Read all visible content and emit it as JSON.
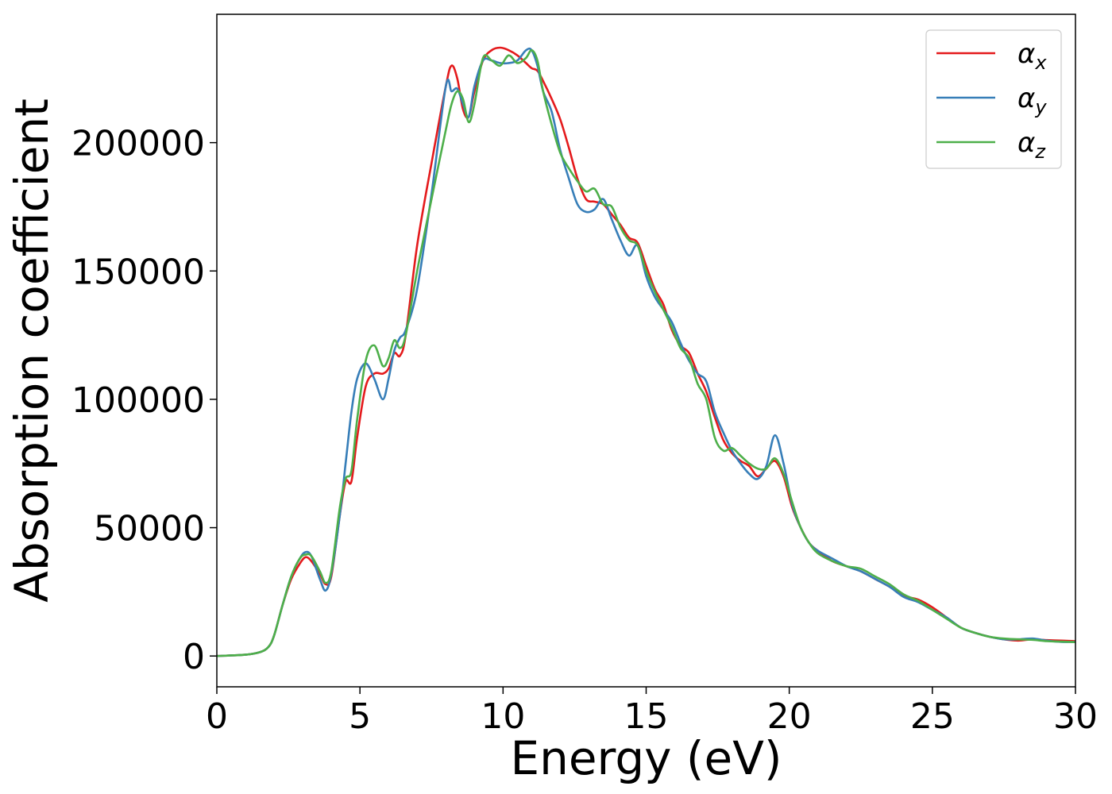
{
  "chart_data": {
    "type": "line",
    "title": "",
    "xlabel": "Energy (eV)",
    "ylabel": "Absorption coefficient",
    "xlim": [
      0,
      30
    ],
    "ylim": [
      -12000,
      250000
    ],
    "xticks": [
      0,
      5,
      10,
      15,
      20,
      25,
      30
    ],
    "yticks": [
      0,
      50000,
      100000,
      150000,
      200000
    ],
    "xtick_labels": [
      "0",
      "5",
      "10",
      "15",
      "20",
      "25",
      "30"
    ],
    "ytick_labels": [
      "0",
      "50000",
      "100000",
      "150000",
      "200000"
    ],
    "grid": false,
    "legend_position": "top-right",
    "series": [
      {
        "name": "α_x",
        "label_main": "α",
        "label_sub": "x",
        "color": "#e41a1c",
        "x": [
          0,
          1.0,
          1.5,
          1.8,
          2.0,
          2.3,
          2.6,
          2.9,
          3.1,
          3.3,
          3.6,
          3.8,
          4.0,
          4.3,
          4.5,
          4.7,
          4.9,
          5.2,
          5.5,
          5.8,
          6.0,
          6.2,
          6.4,
          6.6,
          7.0,
          7.5,
          8.0,
          8.2,
          8.4,
          8.6,
          8.8,
          9.0,
          9.3,
          9.6,
          9.9,
          10.2,
          10.5,
          10.8,
          11.0,
          11.2,
          11.4,
          11.7,
          12.0,
          12.3,
          12.6,
          12.9,
          13.2,
          13.5,
          13.8,
          14.1,
          14.4,
          14.7,
          15.0,
          15.3,
          15.6,
          15.9,
          16.2,
          16.5,
          16.8,
          17.1,
          17.4,
          17.7,
          18.0,
          18.3,
          18.6,
          18.9,
          19.2,
          19.5,
          19.8,
          20.1,
          20.4,
          20.7,
          21.0,
          21.5,
          22.0,
          22.5,
          23.0,
          23.5,
          24.0,
          24.5,
          25.0,
          25.5,
          26.0,
          26.5,
          27.0,
          27.5,
          28.0,
          28.5,
          29.0,
          29.5,
          30.0
        ],
        "y": [
          0,
          500,
          1500,
          3500,
          8000,
          20000,
          30000,
          36000,
          38500,
          37000,
          32000,
          28000,
          31000,
          55000,
          68000,
          68000,
          85000,
          105000,
          110000,
          110000,
          112000,
          118000,
          117000,
          125000,
          160000,
          192000,
          222000,
          230000,
          225000,
          213000,
          210000,
          220000,
          232000,
          236000,
          237000,
          236000,
          234000,
          231000,
          229000,
          228000,
          224000,
          217000,
          209000,
          198000,
          186000,
          178000,
          177000,
          176000,
          172000,
          168000,
          163000,
          161000,
          152000,
          143000,
          137000,
          127000,
          121000,
          118000,
          110000,
          103000,
          93000,
          84000,
          79000,
          76000,
          74000,
          70000,
          73000,
          76000,
          70000,
          58000,
          50000,
          44000,
          41000,
          37000,
          35000,
          33000,
          30000,
          27000,
          23500,
          22000,
          19000,
          15000,
          11000,
          9000,
          7500,
          6500,
          6000,
          6500,
          6200,
          6000,
          5800
        ]
      },
      {
        "name": "α_y",
        "label_main": "α",
        "label_sub": "y",
        "color": "#377eb8",
        "x": [
          0,
          1.0,
          1.5,
          1.8,
          2.0,
          2.3,
          2.6,
          2.9,
          3.1,
          3.3,
          3.6,
          3.8,
          4.0,
          4.3,
          4.5,
          4.7,
          4.9,
          5.2,
          5.5,
          5.8,
          6.0,
          6.2,
          6.4,
          6.6,
          7.0,
          7.5,
          8.0,
          8.2,
          8.4,
          8.6,
          8.8,
          9.0,
          9.3,
          9.6,
          9.9,
          10.2,
          10.5,
          10.8,
          11.0,
          11.2,
          11.4,
          11.7,
          12.0,
          12.3,
          12.6,
          12.9,
          13.2,
          13.5,
          13.8,
          14.1,
          14.4,
          14.7,
          15.0,
          15.3,
          15.6,
          15.9,
          16.2,
          16.5,
          16.8,
          17.1,
          17.4,
          17.7,
          18.0,
          18.3,
          18.6,
          18.9,
          19.2,
          19.5,
          19.8,
          20.1,
          20.4,
          20.7,
          21.0,
          21.5,
          22.0,
          22.5,
          23.0,
          23.5,
          24.0,
          24.5,
          25.0,
          25.5,
          26.0,
          26.5,
          27.0,
          27.5,
          28.0,
          28.5,
          29.0,
          29.5,
          30.0
        ],
        "y": [
          0,
          500,
          1500,
          3500,
          8000,
          20000,
          31000,
          38000,
          40500,
          39000,
          30000,
          25500,
          32000,
          55000,
          75000,
          95000,
          108000,
          114000,
          108000,
          100000,
          108000,
          119000,
          124000,
          127000,
          143000,
          180000,
          222000,
          220000,
          221000,
          215000,
          210000,
          222000,
          232000,
          232000,
          231000,
          231000,
          232000,
          236000,
          236000,
          230000,
          220000,
          212000,
          197000,
          186000,
          176000,
          173000,
          174000,
          178000,
          170000,
          162000,
          156000,
          160000,
          148000,
          140000,
          135000,
          130000,
          122000,
          115000,
          110000,
          107000,
          95000,
          87000,
          80000,
          75000,
          71000,
          69000,
          74000,
          86000,
          75000,
          59000,
          50000,
          44000,
          41000,
          38000,
          35000,
          33000,
          30000,
          27000,
          23000,
          21000,
          18000,
          15000,
          11000,
          9000,
          7500,
          6500,
          6500,
          6800,
          6000,
          5500,
          5500
        ]
      },
      {
        "name": "α_z",
        "label_main": "α",
        "label_sub": "z",
        "color": "#4daf4a",
        "x": [
          0,
          1.0,
          1.5,
          1.8,
          2.0,
          2.3,
          2.6,
          2.9,
          3.1,
          3.3,
          3.6,
          3.8,
          4.0,
          4.3,
          4.5,
          4.7,
          4.9,
          5.2,
          5.5,
          5.8,
          6.0,
          6.2,
          6.4,
          6.6,
          7.0,
          7.5,
          8.0,
          8.2,
          8.4,
          8.6,
          8.8,
          9.0,
          9.3,
          9.6,
          9.9,
          10.2,
          10.5,
          10.8,
          11.0,
          11.2,
          11.4,
          11.7,
          12.0,
          12.3,
          12.6,
          12.9,
          13.2,
          13.5,
          13.8,
          14.1,
          14.4,
          14.7,
          15.0,
          15.3,
          15.6,
          15.9,
          16.2,
          16.5,
          16.8,
          17.1,
          17.4,
          17.7,
          18.0,
          18.3,
          18.6,
          18.9,
          19.2,
          19.5,
          19.8,
          20.1,
          20.4,
          20.7,
          21.0,
          21.5,
          22.0,
          22.5,
          23.0,
          23.5,
          24.0,
          24.5,
          25.0,
          25.5,
          26.0,
          26.5,
          27.0,
          27.5,
          28.0,
          28.5,
          29.0,
          29.5,
          30.0
        ],
        "y": [
          0,
          500,
          1500,
          3500,
          8000,
          20000,
          31000,
          38000,
          39500,
          39000,
          33000,
          28500,
          33000,
          58000,
          69000,
          72000,
          92000,
          115000,
          121000,
          113000,
          116000,
          123000,
          120000,
          125000,
          150000,
          178000,
          205000,
          215000,
          220000,
          217000,
          208000,
          215000,
          233000,
          232000,
          230000,
          234000,
          231000,
          233000,
          236000,
          232000,
          220000,
          207000,
          196000,
          190000,
          185000,
          181000,
          182000,
          176000,
          175000,
          167000,
          162000,
          160000,
          150000,
          142000,
          135000,
          128000,
          120000,
          116000,
          106000,
          100000,
          85000,
          80000,
          81000,
          78000,
          75000,
          73000,
          73000,
          77000,
          71000,
          60000,
          50000,
          44000,
          40000,
          37000,
          35000,
          34000,
          31000,
          28000,
          24000,
          21500,
          18000,
          14500,
          11000,
          9000,
          7500,
          6800,
          6500,
          6300,
          5800,
          5600,
          5400
        ]
      }
    ]
  }
}
